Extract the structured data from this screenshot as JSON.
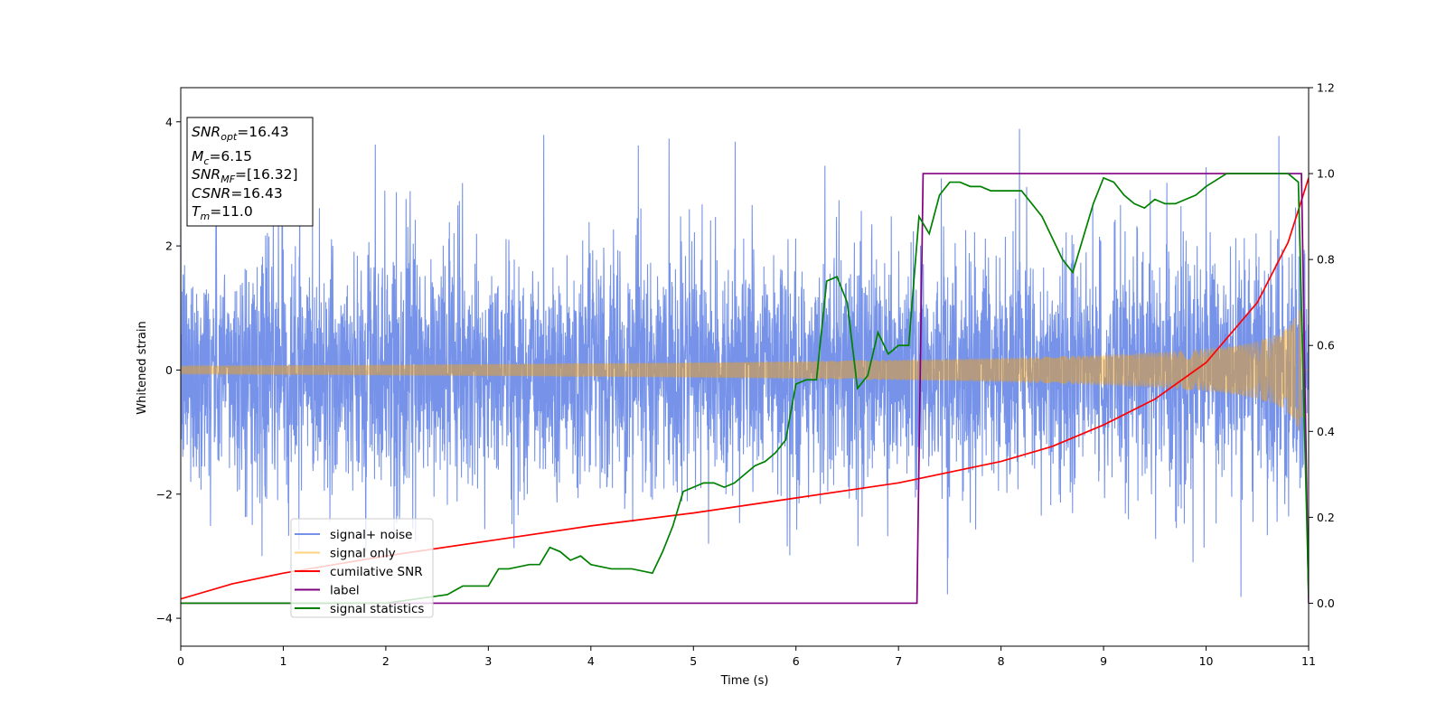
{
  "chart_data": {
    "type": "line",
    "xlabel": "Time (s)",
    "ylabel_left": "Whitened strain",
    "xlim": [
      0,
      11
    ],
    "ylim_left": [
      -4.45,
      4.55
    ],
    "ylim_right": [
      -0.1,
      1.2
    ],
    "x_ticks": [
      0,
      1,
      2,
      3,
      4,
      5,
      6,
      7,
      8,
      9,
      10,
      11
    ],
    "y_left_ticks": [
      -4,
      -2,
      0,
      2,
      4
    ],
    "y_right_ticks": [
      0.0,
      0.2,
      0.4,
      0.6,
      0.8,
      1.0,
      1.2
    ],
    "grid": false,
    "legend_placement": "lower-left",
    "info_box": {
      "snr_opt": {
        "sym": "SNR",
        "sub": "opt",
        "val": "=16.43"
      },
      "mc": {
        "sym": "M",
        "sub": "c",
        "val": "=6.15"
      },
      "snr_mf": {
        "sym": "SNR",
        "sub": "MF",
        "val": "=[16.32]"
      },
      "csnr": {
        "sym": "CSNR",
        "val": "=16.43"
      },
      "tm": {
        "sym": "T",
        "sub": "m",
        "val": "=11.0"
      }
    },
    "series": [
      {
        "name": "signal+ noise",
        "color": "#4169e1",
        "axis": "left",
        "kind": "noise",
        "std": 0.95,
        "spikes_max": 4.15,
        "spikes_min": -4.05
      },
      {
        "name": "signal only",
        "color": "#ffa500",
        "axis": "left",
        "kind": "chirp",
        "amplitude_start": 0.07,
        "amplitude_end": 1.0,
        "t_end": 10.95
      },
      {
        "name": "cumilative SNR",
        "color": "#ff0000",
        "axis": "right",
        "kind": "curve",
        "x": [
          0,
          0.5,
          1,
          2,
          3,
          4,
          5,
          6,
          7,
          7.5,
          8,
          8.5,
          9,
          9.5,
          10,
          10.5,
          10.8,
          11
        ],
        "y": [
          0.01,
          0.045,
          0.07,
          0.11,
          0.145,
          0.18,
          0.21,
          0.245,
          0.28,
          0.305,
          0.33,
          0.365,
          0.415,
          0.475,
          0.56,
          0.7,
          0.84,
          0.99
        ]
      },
      {
        "name": "label",
        "color": "#800080",
        "axis": "right",
        "kind": "step",
        "x": [
          0,
          7.18,
          7.24,
          10.93,
          11.0
        ],
        "y": [
          0.0,
          0.0,
          1.0,
          1.0,
          0.0
        ]
      },
      {
        "name": "signal statistics",
        "color": "#008000",
        "axis": "right",
        "kind": "curve",
        "x": [
          0,
          2.0,
          2.3,
          2.6,
          2.75,
          2.85,
          3.0,
          3.1,
          3.2,
          3.4,
          3.5,
          3.6,
          3.7,
          3.8,
          3.9,
          4.0,
          4.2,
          4.4,
          4.6,
          4.7,
          4.8,
          4.9,
          5.0,
          5.1,
          5.2,
          5.3,
          5.4,
          5.5,
          5.6,
          5.7,
          5.8,
          5.9,
          6.0,
          6.1,
          6.2,
          6.3,
          6.4,
          6.5,
          6.6,
          6.7,
          6.8,
          6.9,
          7.0,
          7.1,
          7.2,
          7.3,
          7.4,
          7.5,
          7.6,
          7.7,
          7.8,
          7.9,
          8.0,
          8.2,
          8.4,
          8.5,
          8.6,
          8.7,
          8.8,
          8.9,
          9.0,
          9.1,
          9.2,
          9.3,
          9.4,
          9.5,
          9.6,
          9.7,
          9.8,
          9.9,
          10.0,
          10.2,
          10.5,
          10.8,
          10.9,
          11.0
        ],
        "y": [
          0.0,
          0.0,
          0.01,
          0.02,
          0.04,
          0.04,
          0.04,
          0.08,
          0.08,
          0.09,
          0.09,
          0.13,
          0.12,
          0.1,
          0.11,
          0.09,
          0.08,
          0.08,
          0.07,
          0.12,
          0.18,
          0.26,
          0.27,
          0.28,
          0.28,
          0.27,
          0.28,
          0.3,
          0.32,
          0.33,
          0.35,
          0.38,
          0.51,
          0.52,
          0.52,
          0.75,
          0.76,
          0.7,
          0.5,
          0.53,
          0.63,
          0.58,
          0.6,
          0.6,
          0.9,
          0.86,
          0.95,
          0.98,
          0.98,
          0.97,
          0.97,
          0.96,
          0.96,
          0.96,
          0.9,
          0.85,
          0.8,
          0.77,
          0.85,
          0.93,
          0.99,
          0.98,
          0.95,
          0.93,
          0.92,
          0.94,
          0.93,
          0.93,
          0.94,
          0.95,
          0.97,
          1.0,
          1.0,
          1.0,
          0.98,
          0.02
        ]
      }
    ]
  }
}
